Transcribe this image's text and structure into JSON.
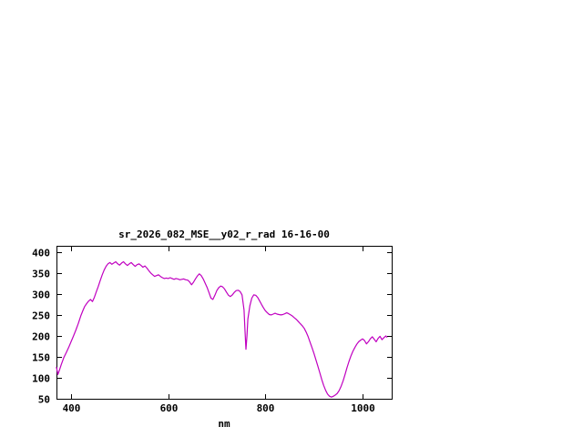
{
  "page": {
    "background": "#ffffff"
  },
  "chart_data": {
    "type": "line",
    "title": "sr_2026_082_MSE__y02_r_rad 16-16-00",
    "xlabel": "nm",
    "ylabel": "",
    "xlim": [
      370,
      1060
    ],
    "ylim": [
      50,
      415
    ],
    "xticks": [
      400,
      600,
      800,
      1000
    ],
    "yticks": [
      50,
      100,
      150,
      200,
      250,
      300,
      350,
      400
    ],
    "grid": false,
    "legend": false,
    "line_color": "#c000c0",
    "axis_color": "#000000",
    "text_color": "#000000",
    "series": [
      {
        "name": "sr_2026_082_MSE__y02_r_rad",
        "points": [
          [
            370,
            125
          ],
          [
            373,
            108
          ],
          [
            376,
            118
          ],
          [
            380,
            132
          ],
          [
            385,
            148
          ],
          [
            390,
            160
          ],
          [
            395,
            172
          ],
          [
            400,
            186
          ],
          [
            405,
            200
          ],
          [
            410,
            214
          ],
          [
            415,
            230
          ],
          [
            420,
            248
          ],
          [
            425,
            262
          ],
          [
            428,
            270
          ],
          [
            432,
            277
          ],
          [
            436,
            283
          ],
          [
            440,
            287
          ],
          [
            444,
            282
          ],
          [
            448,
            292
          ],
          [
            452,
            305
          ],
          [
            456,
            318
          ],
          [
            460,
            332
          ],
          [
            464,
            345
          ],
          [
            468,
            357
          ],
          [
            472,
            366
          ],
          [
            476,
            372
          ],
          [
            480,
            375
          ],
          [
            484,
            371
          ],
          [
            488,
            374
          ],
          [
            492,
            377
          ],
          [
            496,
            372
          ],
          [
            500,
            369
          ],
          [
            504,
            374
          ],
          [
            508,
            377
          ],
          [
            512,
            372
          ],
          [
            516,
            368
          ],
          [
            520,
            372
          ],
          [
            524,
            375
          ],
          [
            528,
            370
          ],
          [
            532,
            366
          ],
          [
            536,
            370
          ],
          [
            540,
            372
          ],
          [
            544,
            368
          ],
          [
            548,
            364
          ],
          [
            552,
            367
          ],
          [
            556,
            362
          ],
          [
            560,
            356
          ],
          [
            564,
            350
          ],
          [
            568,
            346
          ],
          [
            572,
            342
          ],
          [
            576,
            344
          ],
          [
            580,
            346
          ],
          [
            584,
            342
          ],
          [
            588,
            339
          ],
          [
            592,
            337
          ],
          [
            596,
            338
          ],
          [
            600,
            337
          ],
          [
            604,
            339
          ],
          [
            608,
            337
          ],
          [
            612,
            335
          ],
          [
            616,
            337
          ],
          [
            620,
            336
          ],
          [
            624,
            334
          ],
          [
            628,
            335
          ],
          [
            632,
            336
          ],
          [
            636,
            334
          ],
          [
            640,
            333
          ],
          [
            644,
            329
          ],
          [
            648,
            322
          ],
          [
            652,
            328
          ],
          [
            656,
            336
          ],
          [
            660,
            343
          ],
          [
            664,
            348
          ],
          [
            668,
            344
          ],
          [
            672,
            336
          ],
          [
            676,
            326
          ],
          [
            680,
            316
          ],
          [
            684,
            303
          ],
          [
            688,
            290
          ],
          [
            692,
            287
          ],
          [
            696,
            297
          ],
          [
            700,
            308
          ],
          [
            704,
            315
          ],
          [
            708,
            319
          ],
          [
            712,
            317
          ],
          [
            716,
            312
          ],
          [
            720,
            304
          ],
          [
            724,
            297
          ],
          [
            728,
            294
          ],
          [
            732,
            298
          ],
          [
            736,
            304
          ],
          [
            740,
            308
          ],
          [
            744,
            309
          ],
          [
            748,
            306
          ],
          [
            752,
            298
          ],
          [
            756,
            262
          ],
          [
            758,
            215
          ],
          [
            760,
            168
          ],
          [
            762,
            200
          ],
          [
            764,
            240
          ],
          [
            768,
            272
          ],
          [
            772,
            290
          ],
          [
            776,
            298
          ],
          [
            780,
            297
          ],
          [
            784,
            292
          ],
          [
            788,
            284
          ],
          [
            792,
            275
          ],
          [
            796,
            267
          ],
          [
            800,
            260
          ],
          [
            804,
            255
          ],
          [
            808,
            251
          ],
          [
            812,
            250
          ],
          [
            816,
            252
          ],
          [
            820,
            254
          ],
          [
            824,
            252
          ],
          [
            828,
            251
          ],
          [
            832,
            250
          ],
          [
            836,
            251
          ],
          [
            840,
            253
          ],
          [
            844,
            255
          ],
          [
            848,
            253
          ],
          [
            852,
            250
          ],
          [
            856,
            247
          ],
          [
            860,
            243
          ],
          [
            864,
            239
          ],
          [
            868,
            234
          ],
          [
            872,
            229
          ],
          [
            876,
            224
          ],
          [
            880,
            218
          ],
          [
            884,
            209
          ],
          [
            888,
            198
          ],
          [
            892,
            185
          ],
          [
            896,
            172
          ],
          [
            900,
            158
          ],
          [
            904,
            143
          ],
          [
            908,
            128
          ],
          [
            912,
            112
          ],
          [
            916,
            96
          ],
          [
            920,
            82
          ],
          [
            924,
            70
          ],
          [
            928,
            61
          ],
          [
            932,
            56
          ],
          [
            936,
            54
          ],
          [
            940,
            56
          ],
          [
            944,
            59
          ],
          [
            948,
            63
          ],
          [
            952,
            70
          ],
          [
            956,
            80
          ],
          [
            960,
            93
          ],
          [
            964,
            108
          ],
          [
            968,
            124
          ],
          [
            972,
            139
          ],
          [
            976,
            152
          ],
          [
            980,
            163
          ],
          [
            984,
            172
          ],
          [
            988,
            180
          ],
          [
            992,
            186
          ],
          [
            996,
            190
          ],
          [
            1000,
            193
          ],
          [
            1004,
            189
          ],
          [
            1008,
            181
          ],
          [
            1012,
            186
          ],
          [
            1016,
            193
          ],
          [
            1020,
            198
          ],
          [
            1024,
            192
          ],
          [
            1028,
            186
          ],
          [
            1032,
            194
          ],
          [
            1036,
            199
          ],
          [
            1040,
            191
          ],
          [
            1044,
            196
          ],
          [
            1048,
            200
          ],
          [
            1050,
            197
          ]
        ]
      }
    ]
  }
}
